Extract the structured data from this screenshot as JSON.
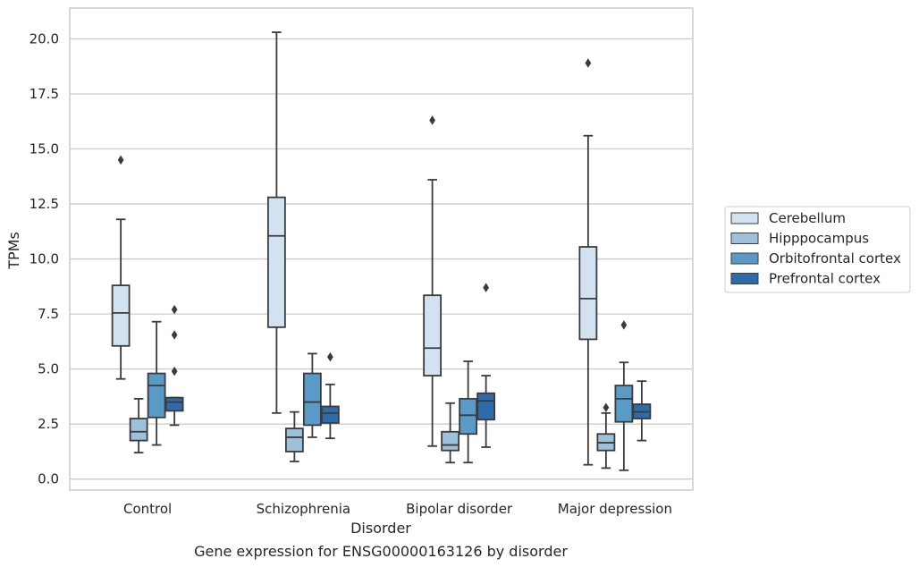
{
  "chart_data": {
    "type": "boxplot",
    "title": "Gene expression for ENSG00000163126 by disorder",
    "xlabel": "Disorder",
    "ylabel": "TPMs",
    "ylim": [
      -0.5,
      21.4
    ],
    "yticks": [
      0.0,
      2.5,
      5.0,
      7.5,
      10.0,
      12.5,
      15.0,
      17.5,
      20.0
    ],
    "ytick_labels": [
      "0.0",
      "2.5",
      "5.0",
      "7.5",
      "10.0",
      "12.5",
      "15.0",
      "17.5",
      "20.0"
    ],
    "categories": [
      "Control",
      "Schizophrenia",
      "Bipolar disorder",
      "Major depression"
    ],
    "grid": "horizontal",
    "legend_position": "right",
    "series": [
      {
        "name": "Cerebellum",
        "color": "#d2e2f1",
        "boxes": [
          {
            "whislo": 4.55,
            "q1": 6.05,
            "med": 7.55,
            "q3": 8.8,
            "whishi": 11.8,
            "fliers": [
              14.5
            ]
          },
          {
            "whislo": 3.0,
            "q1": 6.9,
            "med": 11.05,
            "q3": 12.8,
            "whishi": 20.3,
            "fliers": []
          },
          {
            "whislo": 1.5,
            "q1": 4.7,
            "med": 5.95,
            "q3": 8.35,
            "whishi": 13.6,
            "fliers": [
              16.3
            ]
          },
          {
            "whislo": 0.65,
            "q1": 6.35,
            "med": 8.2,
            "q3": 10.55,
            "whishi": 15.6,
            "fliers": [
              18.9
            ]
          }
        ]
      },
      {
        "name": "Hipppocampus",
        "color": "#9dc1da",
        "boxes": [
          {
            "whislo": 1.2,
            "q1": 1.75,
            "med": 2.15,
            "q3": 2.75,
            "whishi": 3.65,
            "fliers": []
          },
          {
            "whislo": 0.8,
            "q1": 1.25,
            "med": 1.9,
            "q3": 2.3,
            "whishi": 3.05,
            "fliers": []
          },
          {
            "whislo": 0.75,
            "q1": 1.3,
            "med": 1.55,
            "q3": 2.15,
            "whishi": 3.45,
            "fliers": []
          },
          {
            "whislo": 0.5,
            "q1": 1.3,
            "med": 1.65,
            "q3": 2.05,
            "whishi": 3.0,
            "fliers": [
              3.25
            ]
          }
        ]
      },
      {
        "name": "Orbitofrontal cortex",
        "color": "#5a9ac6",
        "boxes": [
          {
            "whislo": 1.55,
            "q1": 2.8,
            "med": 4.25,
            "q3": 4.8,
            "whishi": 7.15,
            "fliers": []
          },
          {
            "whislo": 1.9,
            "q1": 2.45,
            "med": 3.5,
            "q3": 4.8,
            "whishi": 5.7,
            "fliers": []
          },
          {
            "whislo": 0.75,
            "q1": 2.05,
            "med": 2.9,
            "q3": 3.65,
            "whishi": 5.35,
            "fliers": []
          },
          {
            "whislo": 0.4,
            "q1": 2.6,
            "med": 3.65,
            "q3": 4.25,
            "whishi": 5.3,
            "fliers": [
              7.0
            ]
          }
        ]
      },
      {
        "name": "Prefrontal cortex",
        "color": "#2d6ca8",
        "boxes": [
          {
            "whislo": 2.45,
            "q1": 3.1,
            "med": 3.5,
            "q3": 3.7,
            "whishi": 3.7,
            "fliers": [
              4.9,
              6.55,
              7.7
            ]
          },
          {
            "whislo": 1.85,
            "q1": 2.55,
            "med": 3.0,
            "q3": 3.3,
            "whishi": 4.3,
            "fliers": [
              5.55
            ]
          },
          {
            "whislo": 1.45,
            "q1": 2.7,
            "med": 3.55,
            "q3": 3.9,
            "whishi": 4.7,
            "fliers": [
              8.7
            ]
          },
          {
            "whislo": 1.75,
            "q1": 2.75,
            "med": 3.05,
            "q3": 3.4,
            "whishi": 4.45,
            "fliers": []
          }
        ]
      }
    ]
  }
}
